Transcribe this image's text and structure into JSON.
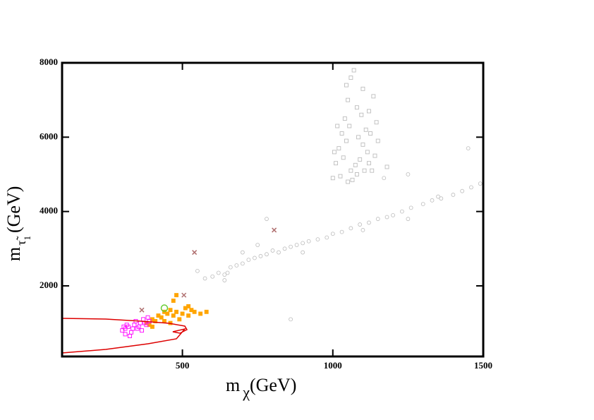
{
  "chart_data": {
    "type": "scatter",
    "x_label": {
      "base": "m",
      "sub": "χ",
      "unit": "(GeV)"
    },
    "y_label": {
      "base": "m",
      "sub": "τ̃",
      "subsub": "1",
      "unit": "(GeV)"
    },
    "xlim": [
      100,
      1500
    ],
    "ylim": [
      100,
      8000
    ],
    "xticks": [
      500,
      1000,
      1500
    ],
    "yticks": [
      2000,
      4000,
      6000,
      8000
    ],
    "series": [
      {
        "marker": "circle",
        "filled": false,
        "color": "#bdbdbd",
        "x": [
          575,
          600,
          620,
          640,
          660,
          680,
          700,
          720,
          740,
          760,
          780,
          800,
          820,
          840,
          860,
          880,
          900,
          920,
          950,
          980,
          1000,
          1030,
          1060,
          1090,
          1120,
          1150,
          1180,
          1200,
          1230,
          1260,
          1300,
          1330,
          1360,
          1400,
          1430,
          1460,
          1490,
          700,
          750,
          900,
          1100,
          1250,
          1350,
          1450,
          1250,
          1170,
          650,
          860,
          780,
          640,
          550
        ],
        "values": [
          2200,
          2250,
          2350,
          2300,
          2500,
          2550,
          2600,
          2700,
          2750,
          2800,
          2850,
          2950,
          2900,
          3000,
          3050,
          3100,
          3150,
          3200,
          3250,
          3300,
          3400,
          3450,
          3550,
          3650,
          3700,
          3800,
          3850,
          3900,
          4000,
          4100,
          4200,
          4300,
          4350,
          4450,
          4550,
          4650,
          4750,
          2900,
          3100,
          2900,
          3500,
          3800,
          4400,
          5700,
          5000,
          4900,
          2350,
          1100,
          3800,
          2150,
          2400
        ]
      },
      {
        "marker": "square",
        "filled": false,
        "color": "#bdbdbd",
        "x": [
          1000,
          1010,
          1020,
          1030,
          1040,
          1050,
          1060,
          1070,
          1080,
          1090,
          1100,
          1110,
          1120,
          1130,
          1140,
          1150,
          1005,
          1015,
          1025,
          1035,
          1045,
          1055,
          1065,
          1075,
          1085,
          1095,
          1105,
          1115,
          1125,
          1135,
          1145,
          1045,
          1060,
          1080,
          1100,
          1120,
          1180,
          1050
        ],
        "values": [
          4900,
          5300,
          5700,
          6100,
          6500,
          7000,
          7600,
          7800,
          5000,
          5400,
          5800,
          6200,
          6700,
          5100,
          5500,
          5900,
          5600,
          6300,
          4950,
          5450,
          5900,
          6300,
          4850,
          5250,
          6000,
          6600,
          5100,
          5600,
          6100,
          7100,
          6400,
          7400,
          5100,
          6800,
          7300,
          5300,
          5200,
          4800
        ]
      },
      {
        "marker": "square",
        "filled": true,
        "color": "#ffa500",
        "x": [
          380,
          400,
          410,
          420,
          430,
          440,
          450,
          460,
          470,
          480,
          490,
          500,
          510,
          520,
          530,
          540,
          560,
          580,
          470,
          480,
          520,
          440,
          460,
          400,
          390
        ],
        "values": [
          1000,
          1100,
          1050,
          1200,
          1150,
          1300,
          1250,
          1350,
          1200,
          1300,
          1100,
          1250,
          1400,
          1200,
          1350,
          1300,
          1250,
          1300,
          1600,
          1750,
          1450,
          1050,
          1000,
          900,
          950
        ]
      },
      {
        "marker": "square",
        "filled": false,
        "color": "#ff00ff",
        "x": [
          300,
          310,
          320,
          330,
          340,
          350,
          360,
          370,
          380,
          390,
          310,
          325,
          345,
          355,
          365,
          375,
          335,
          315,
          305,
          385
        ],
        "values": [
          800,
          850,
          900,
          750,
          950,
          850,
          1000,
          1100,
          950,
          1050,
          700,
          650,
          1050,
          900,
          800,
          1000,
          850,
          950,
          900,
          1150
        ]
      },
      {
        "marker": "x",
        "filled": false,
        "color": "#b07070",
        "x": [
          365,
          505,
          540,
          805
        ],
        "values": [
          1350,
          1750,
          2900,
          3500
        ]
      },
      {
        "marker": "circle",
        "filled": false,
        "color": "#66cc33",
        "x": [
          440
        ],
        "values": [
          1400
        ]
      },
      {
        "marker": "line",
        "color": "#dd0000",
        "x": [
          100,
          245,
          363,
          456,
          508,
          515,
          492,
          468,
          508,
          480,
          386,
          245,
          100
        ],
        "values": [
          1125,
          1106,
          1050,
          993,
          917,
          822,
          727,
          765,
          841,
          575,
          442,
          290,
          195
        ]
      }
    ]
  }
}
